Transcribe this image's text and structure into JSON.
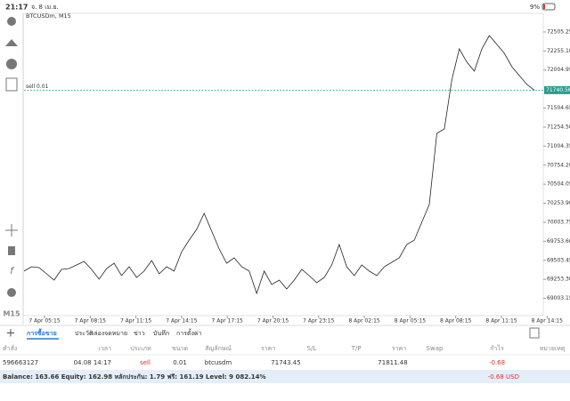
{
  "status_bar": {
    "time": "21:17",
    "date": "จ. 8 เม.ย.",
    "battery": "9%"
  },
  "chart": {
    "type": "line",
    "symbol_label": "BTCUSDm, M15",
    "timeframe": "M15",
    "color": "#222222",
    "values": [
      69361,
      69419,
      69407,
      69325,
      69243,
      69384,
      69395,
      69442,
      69489,
      69384,
      69255,
      69395,
      69466,
      69302,
      69419,
      69279,
      69361,
      69501,
      69325,
      69419,
      69361,
      69618,
      69770,
      69910,
      70120,
      69886,
      69653,
      69466,
      69536,
      69419,
      69361,
      69068,
      69361,
      69185,
      69243,
      69127,
      69243,
      69384,
      69302,
      69208,
      69279,
      69442,
      69711,
      69419,
      69302,
      69442,
      69361,
      69302,
      69419,
      69477,
      69536,
      69711,
      69770,
      70003,
      70237,
      71172,
      71231,
      71874,
      72283,
      72108,
      71991,
      72283,
      72458,
      72341,
      72224,
      72049,
      71932,
      71815,
      71740.56
    ],
    "ylim": [
      68776,
      72750
    ],
    "yticks": [
      72505.25,
      {
        "value": 72255.1,
        "label": "72255.10"
      },
      72004.95,
      71504.65,
      {
        "value": 71254.5,
        "label": "71254.50"
      },
      71004.35,
      {
        "value": 70754.2,
        "label": "70754.20"
      },
      70504.05,
      {
        "value": 70253.9,
        "label": "70253.90"
      },
      70003.75,
      {
        "value": 69753.6,
        "label": "69753.60"
      },
      69503.45,
      {
        "value": 69253.3,
        "label": "69253.30"
      },
      69003.15
    ],
    "xticks": [
      "7 Apr 05:15",
      "7 Apr 08:15",
      "7 Apr 11:15",
      "7 Apr 14:15",
      "7 Apr 17:15",
      "7 Apr 20:15",
      "7 Apr 23:15",
      "8 Apr 02:15",
      "8 Apr 05:15",
      "8 Apr 08:15",
      "8 Apr 11:15",
      "8 Apr 14:15"
    ],
    "order_line": {
      "label": "sell 0.01",
      "value": 71740.56,
      "color": "#2a9d8f"
    }
  },
  "tabs": [
    "การซื้อขาย",
    "ประวัติ",
    "กล่องจดหมาย",
    "ข่าว",
    "บันทึก",
    "การตั้งค่า"
  ],
  "table": {
    "header": [
      "คำสั่ง",
      "เวลา",
      "ประเภท",
      "ขนาด",
      "สัญลักษณ์",
      "ราคา",
      "S/L",
      "T/P",
      "ราคา",
      "Swap",
      "กำไร",
      "หมายเหตุ"
    ],
    "row": {
      "order": "596663127",
      "time": "04.08 14:17",
      "type": "sell",
      "volume": "0.01",
      "symbol": "btcusdm",
      "open_price": "71743.45",
      "current_price": "71811.48",
      "profit": "-0.68"
    }
  },
  "footer": {
    "summary": "Balance: 163.66 Equity: 162.98 หลักประกัน: 1.79 ฟรี: 161.19 Level: 9 082.14%",
    "total": "-0.68 USD"
  }
}
